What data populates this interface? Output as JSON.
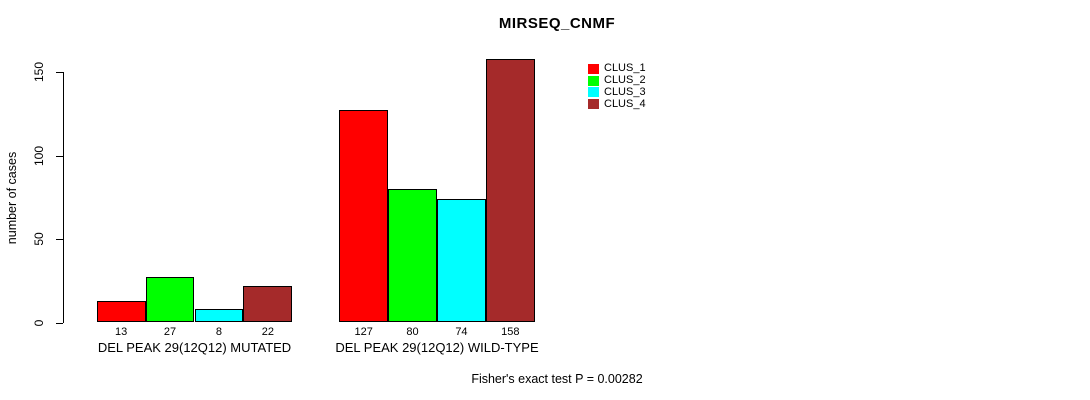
{
  "chart_data": {
    "type": "bar",
    "title": "MIRSEQ_CNMF",
    "xlabel": "",
    "ylabel": "number of cases",
    "ylim": [
      0,
      150
    ],
    "yticks": [
      0,
      50,
      100,
      150
    ],
    "grid": false,
    "legend_position": "topright-inside",
    "categories": [
      "DEL PEAK 29(12Q12) MUTATED",
      "DEL PEAK 29(12Q12) WILD-TYPE"
    ],
    "series": [
      {
        "name": "CLUS_1",
        "color": "#FF0000",
        "values": [
          13,
          127
        ]
      },
      {
        "name": "CLUS_2",
        "color": "#00FF00",
        "values": [
          27,
          80
        ]
      },
      {
        "name": "CLUS_3",
        "color": "#00FFFF",
        "values": [
          8,
          74
        ]
      },
      {
        "name": "CLUS_4",
        "color": "#A52A2A",
        "values": [
          22,
          158
        ]
      }
    ],
    "bar_value_labels": [
      [
        13,
        27,
        8,
        22
      ],
      [
        127,
        80,
        74,
        158
      ]
    ],
    "annotation": "Fisher's exact test P = 0.00282"
  }
}
